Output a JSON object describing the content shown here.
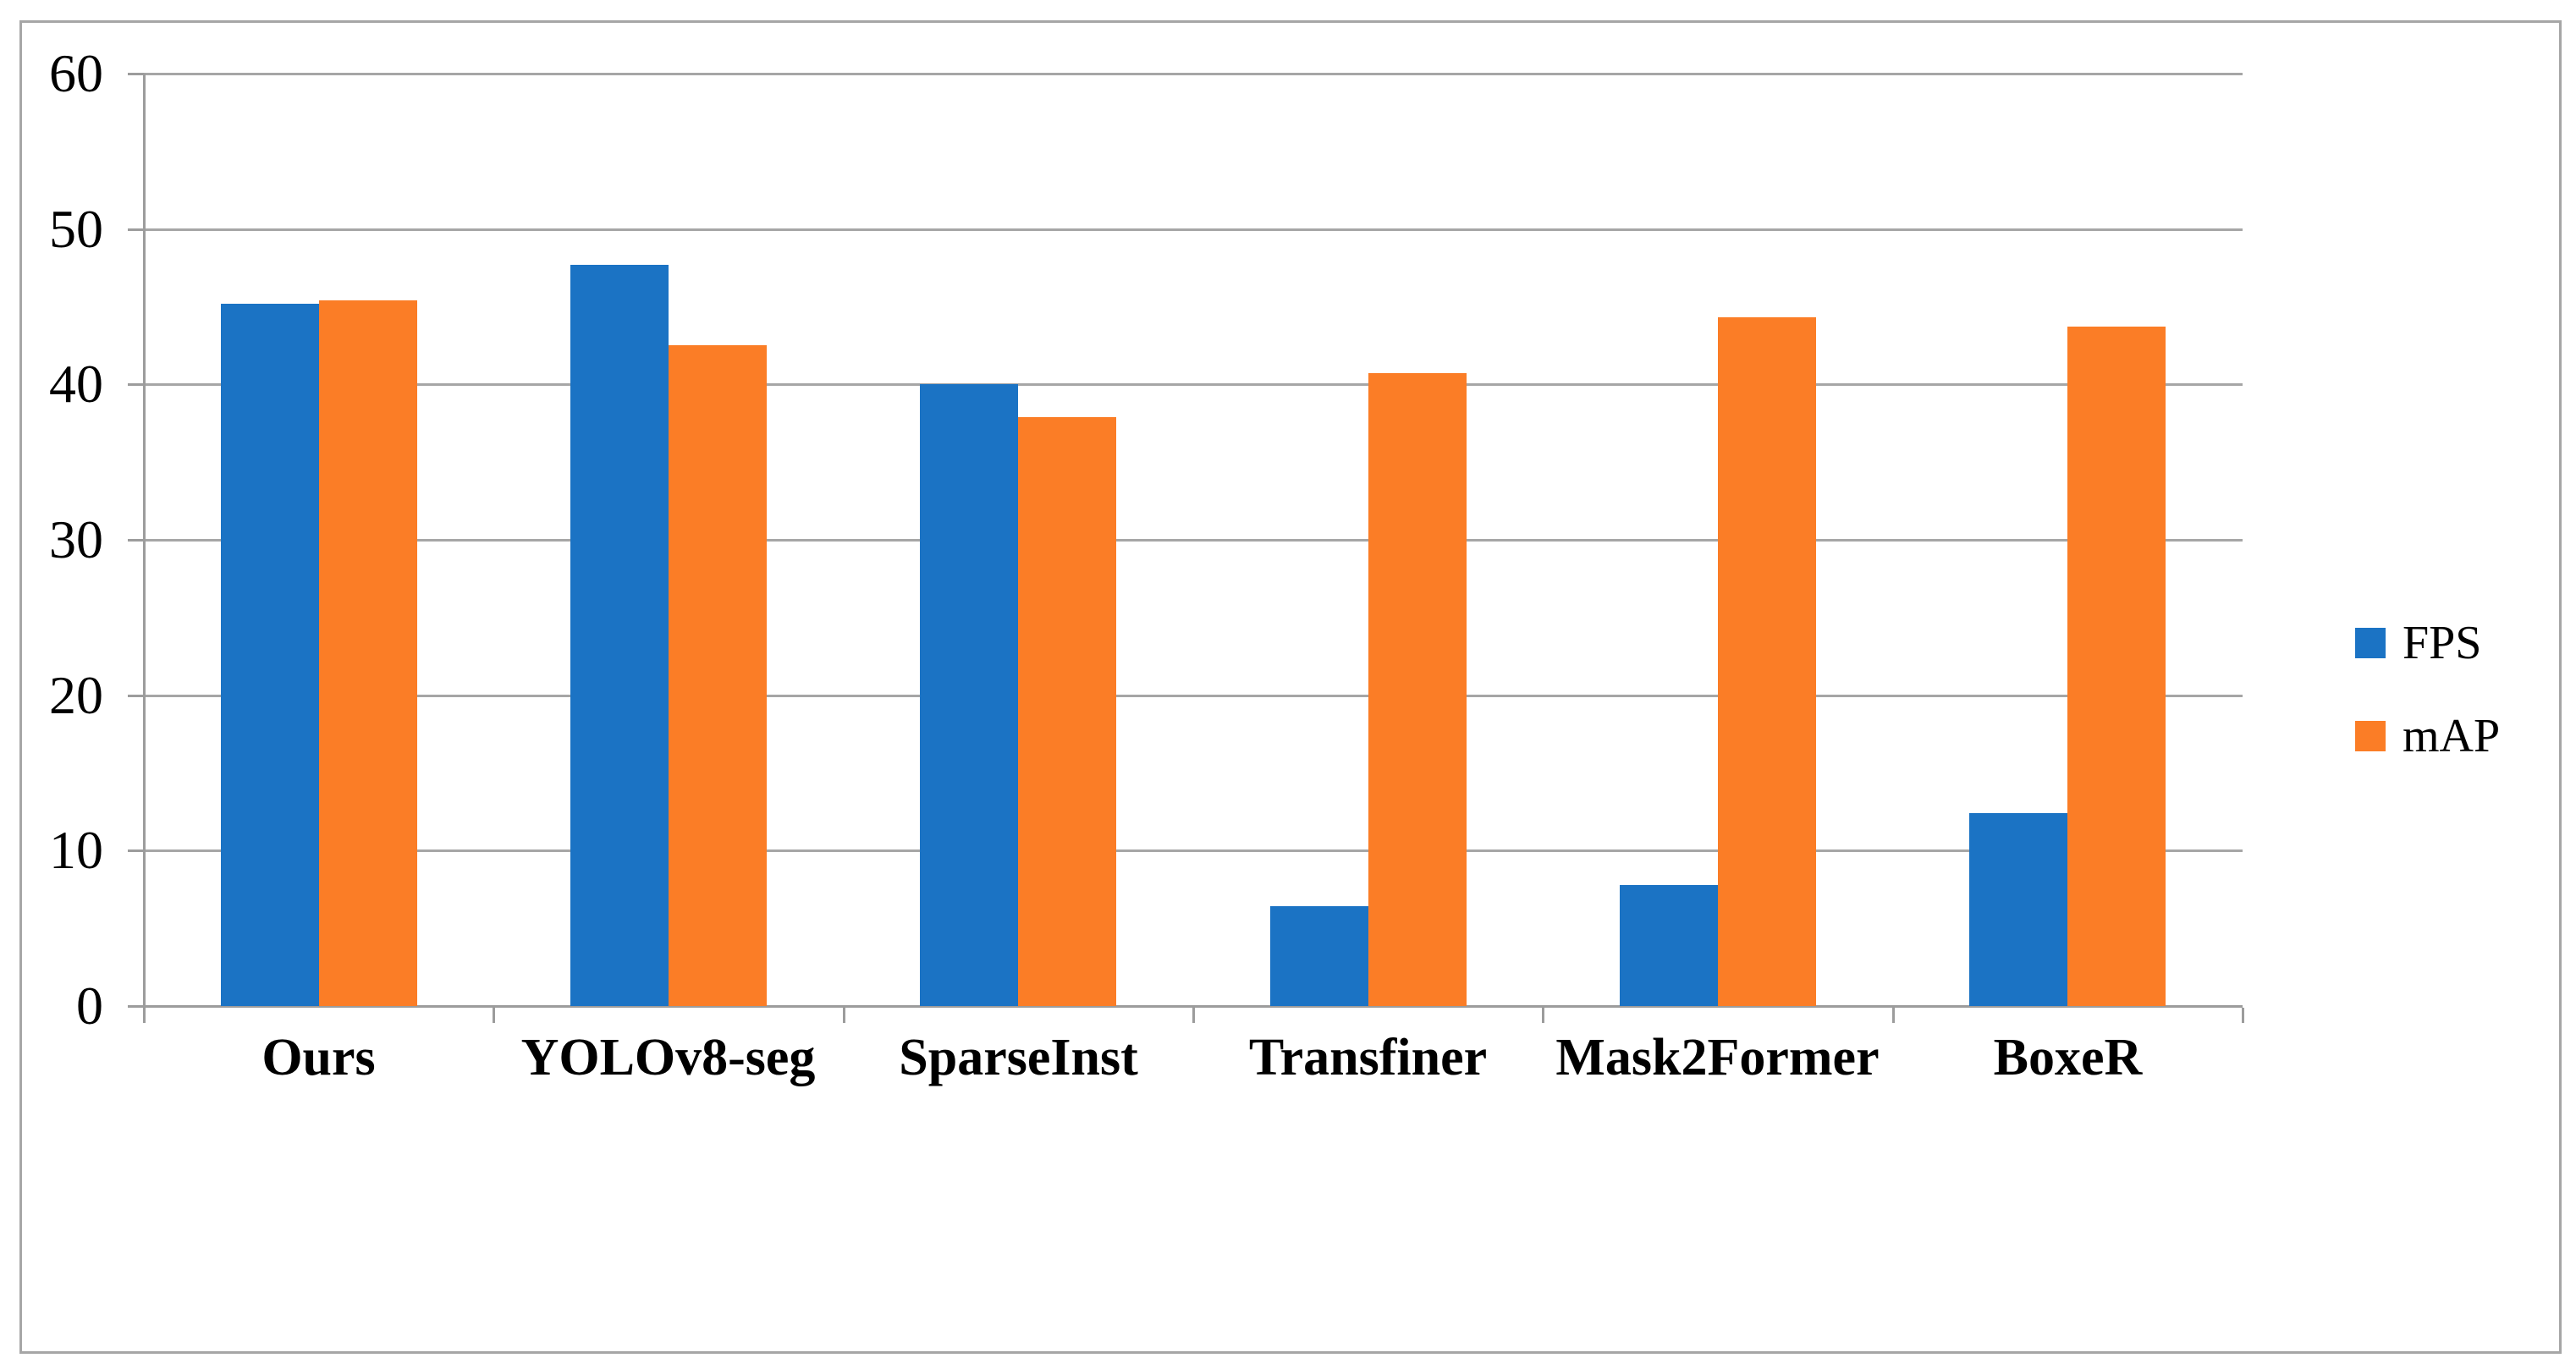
{
  "chart_data": {
    "type": "bar",
    "title": "",
    "xlabel": "",
    "ylabel": "",
    "categories": [
      "Ours",
      "YOLOv8-seg",
      "SparseInst",
      "Transfiner",
      "Mask2Former",
      "BoxeR"
    ],
    "series": [
      {
        "name": "FPS",
        "color": "#1b73c4",
        "values": [
          45.2,
          47.7,
          40.0,
          6.4,
          7.8,
          12.4
        ]
      },
      {
        "name": "mAP",
        "color": "#fb7d26",
        "values": [
          45.4,
          42.5,
          37.9,
          40.7,
          44.3,
          43.7
        ]
      }
    ],
    "ylim": [
      0,
      60
    ],
    "yticks": [
      0,
      10,
      20,
      30,
      40,
      50,
      60
    ],
    "grid": "horizontal",
    "legend_position": "right"
  },
  "legend": {
    "items": [
      {
        "label": "FPS",
        "color": "#1b73c4"
      },
      {
        "label": "mAP",
        "color": "#fb7d26"
      }
    ]
  },
  "colors": {
    "background": "#ffffff",
    "border": "#a6a6a6",
    "gridline": "#a6a6a6",
    "axis": "#9c9c9c",
    "text": "#000000"
  }
}
